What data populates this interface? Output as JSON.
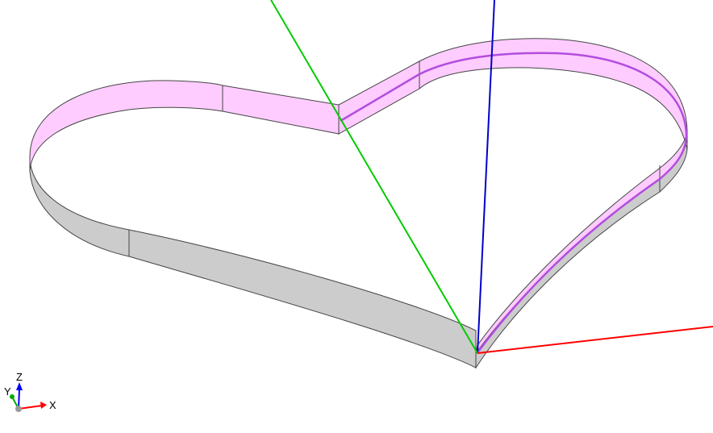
{
  "viewport": {
    "background": "#ffffff"
  },
  "model": {
    "shape": "heart-shaped extruded band",
    "inner_face_color": "#ffccff",
    "outer_face_color": "#cccccc",
    "edge_color": "#444444",
    "highlighted_curve_color": "#b24dde"
  },
  "axes": {
    "x_axis_color": "#ff0000",
    "y_axis_color": "#00cc00",
    "z_axis_color": "#0000cc"
  },
  "orientation_triad": {
    "x_label": "X",
    "y_label": "Y",
    "z_label": "Z",
    "x_color": "#ff0000",
    "y_color": "#00aa00",
    "z_color": "#0000ff",
    "origin_color": "#999999"
  }
}
